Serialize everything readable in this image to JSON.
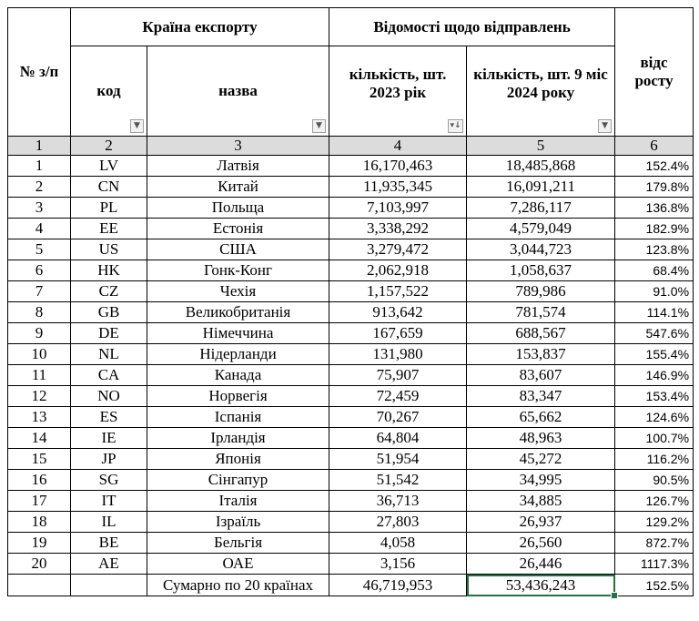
{
  "header": {
    "num_label": "№ з/п",
    "country_group": "Країна експорту",
    "shipments_group": "Відомості щодо відправлень",
    "code_label": "код",
    "name_label": "назва",
    "qty2023_label": "кількість, шт. 2023 рік",
    "qty2024_label": "кількість, шт. 9 міс 2024 року",
    "growth_label": "відс росту"
  },
  "index_row": [
    "1",
    "2",
    "3",
    "4",
    "5",
    "6"
  ],
  "icons": {
    "filter": "dropdown-filter-icon",
    "sorted_filter": "sort-descending-filter-icon"
  },
  "rows": [
    {
      "n": "1",
      "code": "LV",
      "name": "Латвія",
      "q2023": "16,170,463",
      "q2024": "18,485,868",
      "pct": "152.4%"
    },
    {
      "n": "2",
      "code": "CN",
      "name": "Китай",
      "q2023": "11,935,345",
      "q2024": "16,091,211",
      "pct": "179.8%"
    },
    {
      "n": "3",
      "code": "PL",
      "name": "Польща",
      "q2023": "7,103,997",
      "q2024": "7,286,117",
      "pct": "136.8%"
    },
    {
      "n": "4",
      "code": "EE",
      "name": "Естонія",
      "q2023": "3,338,292",
      "q2024": "4,579,049",
      "pct": "182.9%"
    },
    {
      "n": "5",
      "code": "US",
      "name": "США",
      "q2023": "3,279,472",
      "q2024": "3,044,723",
      "pct": "123.8%"
    },
    {
      "n": "6",
      "code": "HK",
      "name": "Гонк-Конг",
      "q2023": "2,062,918",
      "q2024": "1,058,637",
      "pct": "68.4%"
    },
    {
      "n": "7",
      "code": "CZ",
      "name": "Чехія",
      "q2023": "1,157,522",
      "q2024": "789,986",
      "pct": "91.0%"
    },
    {
      "n": "8",
      "code": "GB",
      "name": "Великобританія",
      "q2023": "913,642",
      "q2024": "781,574",
      "pct": "114.1%"
    },
    {
      "n": "9",
      "code": "DE",
      "name": "Німеччина",
      "q2023": "167,659",
      "q2024": "688,567",
      "pct": "547.6%"
    },
    {
      "n": "10",
      "code": "NL",
      "name": "Нідерланди",
      "q2023": "131,980",
      "q2024": "153,837",
      "pct": "155.4%"
    },
    {
      "n": "11",
      "code": "CA",
      "name": "Канада",
      "q2023": "75,907",
      "q2024": "83,607",
      "pct": "146.9%"
    },
    {
      "n": "12",
      "code": "NO",
      "name": "Норвегія",
      "q2023": "72,459",
      "q2024": "83,347",
      "pct": "153.4%"
    },
    {
      "n": "13",
      "code": "ES",
      "name": "Іспанія",
      "q2023": "70,267",
      "q2024": "65,662",
      "pct": "124.6%"
    },
    {
      "n": "14",
      "code": "IE",
      "name": "Ірландія",
      "q2023": "64,804",
      "q2024": "48,963",
      "pct": "100.7%"
    },
    {
      "n": "15",
      "code": "JP",
      "name": "Японія",
      "q2023": "51,954",
      "q2024": "45,272",
      "pct": "116.2%"
    },
    {
      "n": "16",
      "code": "SG",
      "name": "Сінгапур",
      "q2023": "51,542",
      "q2024": "34,995",
      "pct": "90.5%"
    },
    {
      "n": "17",
      "code": "IT",
      "name": "Італія",
      "q2023": "36,713",
      "q2024": "34,885",
      "pct": "126.7%"
    },
    {
      "n": "18",
      "code": "IL",
      "name": "Ізраїль",
      "q2023": "27,803",
      "q2024": "26,937",
      "pct": "129.2%"
    },
    {
      "n": "19",
      "code": "BE",
      "name": "Бельгія",
      "q2023": "4,058",
      "q2024": "26,560",
      "pct": "872.7%"
    },
    {
      "n": "20",
      "code": "AE",
      "name": "ОАЕ",
      "q2023": "3,156",
      "q2024": "26,446",
      "pct": "1117.3%"
    }
  ],
  "total": {
    "label": "Сумарно по 20 країнах",
    "q2023": "46,719,953",
    "q2024": "53,436,243",
    "pct": "152.5%"
  },
  "colors": {
    "index_row_bg": "#dcdcdc",
    "selection": "#217346"
  }
}
